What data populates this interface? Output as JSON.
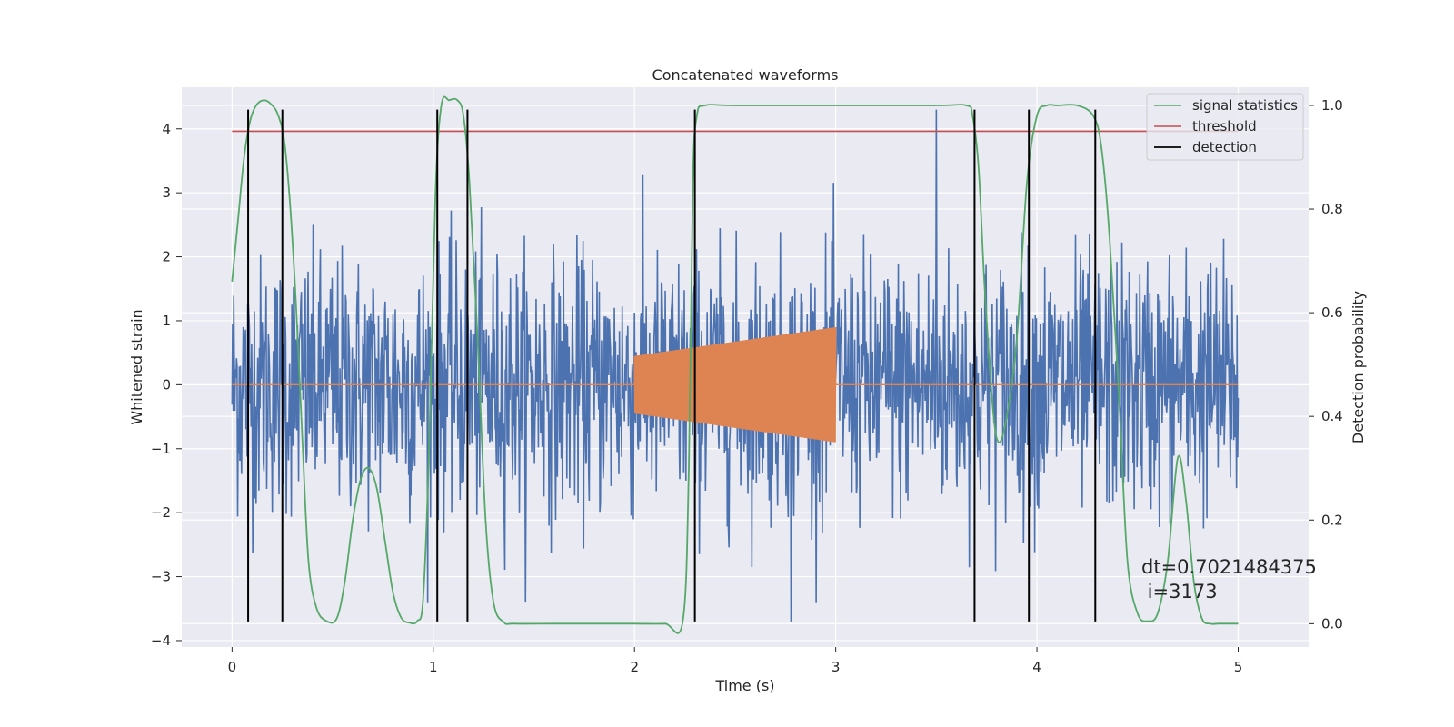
{
  "chart_data": {
    "type": "line",
    "title": "Concatenated waveforms",
    "xlabel": "Time (s)",
    "ylabel": "Whitened strain",
    "y2label": "Detection probability",
    "xlim": [
      -0.25,
      5.35
    ],
    "ylim": [
      -4.1,
      4.65
    ],
    "y2lim": [
      -0.045,
      1.035
    ],
    "x_ticks": [
      0,
      1,
      2,
      3,
      4,
      5
    ],
    "y_ticks": [
      -4,
      -3,
      -2,
      -1,
      0,
      1,
      2,
      3,
      4
    ],
    "y2_ticks": [
      0.0,
      0.2,
      0.4,
      0.6,
      0.8,
      1.0
    ],
    "y2_tick_labels": [
      "0.0",
      "0.2",
      "0.4",
      "0.6",
      "0.8",
      "1.0"
    ],
    "grid": true,
    "legend_position": "top-right",
    "series": [
      {
        "name": "",
        "role": "whitened-strain-noise",
        "color": "#4c72b0",
        "x_range": [
          0,
          5
        ],
        "approx_amplitude": 2.4,
        "peak": 4.3,
        "trough": -3.7
      },
      {
        "name": "",
        "role": "injected-chirp",
        "color": "#dd8452",
        "x_range": [
          2,
          3
        ],
        "envelope_start": 0.45,
        "envelope_end": 0.9
      },
      {
        "name": "signal statistics",
        "color": "#55a868",
        "axis": "right",
        "x": [
          0.0,
          0.03,
          0.06,
          0.09,
          0.12,
          0.16,
          0.2,
          0.23,
          0.26,
          0.29,
          0.32,
          0.35,
          0.38,
          0.42,
          0.47,
          0.52,
          0.56,
          0.6,
          0.64,
          0.68,
          0.72,
          0.76,
          0.8,
          0.84,
          0.88,
          0.92,
          0.95,
          0.98,
          1.01,
          1.04,
          1.08,
          1.12,
          1.15,
          1.18,
          1.22,
          1.26,
          1.3,
          1.35,
          1.4,
          1.6,
          1.8,
          2.0,
          2.15,
          2.24,
          2.27,
          2.29,
          2.31,
          2.35,
          2.5,
          3.0,
          3.5,
          3.65,
          3.68,
          3.71,
          3.74,
          3.78,
          3.81,
          3.85,
          3.9,
          3.95,
          4.0,
          4.05,
          4.1,
          4.2,
          4.28,
          4.32,
          4.36,
          4.41,
          4.45,
          4.5,
          4.55,
          4.6,
          4.65,
          4.7,
          4.74,
          4.78,
          4.82,
          4.86,
          4.9,
          4.95,
          5.0
        ],
        "values": [
          0.66,
          0.78,
          0.9,
          0.97,
          1.0,
          1.01,
          1.0,
          0.98,
          0.93,
          0.8,
          0.6,
          0.35,
          0.12,
          0.03,
          0.005,
          0.01,
          0.08,
          0.2,
          0.28,
          0.3,
          0.26,
          0.16,
          0.06,
          0.012,
          0.002,
          0.005,
          0.05,
          0.35,
          0.82,
          1.0,
          1.01,
          1.01,
          0.98,
          0.85,
          0.55,
          0.2,
          0.04,
          0.003,
          0.0,
          0.0,
          0.0,
          0.0,
          0.0,
          0.005,
          0.3,
          0.85,
          0.98,
          1.0,
          1.0,
          1.0,
          1.0,
          1.0,
          0.98,
          0.88,
          0.65,
          0.42,
          0.35,
          0.4,
          0.55,
          0.85,
          0.98,
          1.0,
          1.0,
          1.0,
          0.98,
          0.92,
          0.75,
          0.42,
          0.12,
          0.02,
          0.005,
          0.02,
          0.12,
          0.32,
          0.24,
          0.08,
          0.01,
          0.0,
          0.0,
          0.0,
          0.0
        ]
      },
      {
        "name": "threshold",
        "color": "#c44e52",
        "axis": "right",
        "x_range": [
          0,
          5
        ],
        "value": 0.95
      },
      {
        "name": "detection",
        "color": "#000000",
        "type": "vlines",
        "x": [
          0.08,
          0.25,
          1.02,
          1.17,
          2.3,
          3.69,
          3.96,
          4.29
        ],
        "y_range": [
          -3.7,
          4.3
        ]
      }
    ],
    "annotations": [
      "dt=0.7021484375",
      " i=3173"
    ]
  }
}
